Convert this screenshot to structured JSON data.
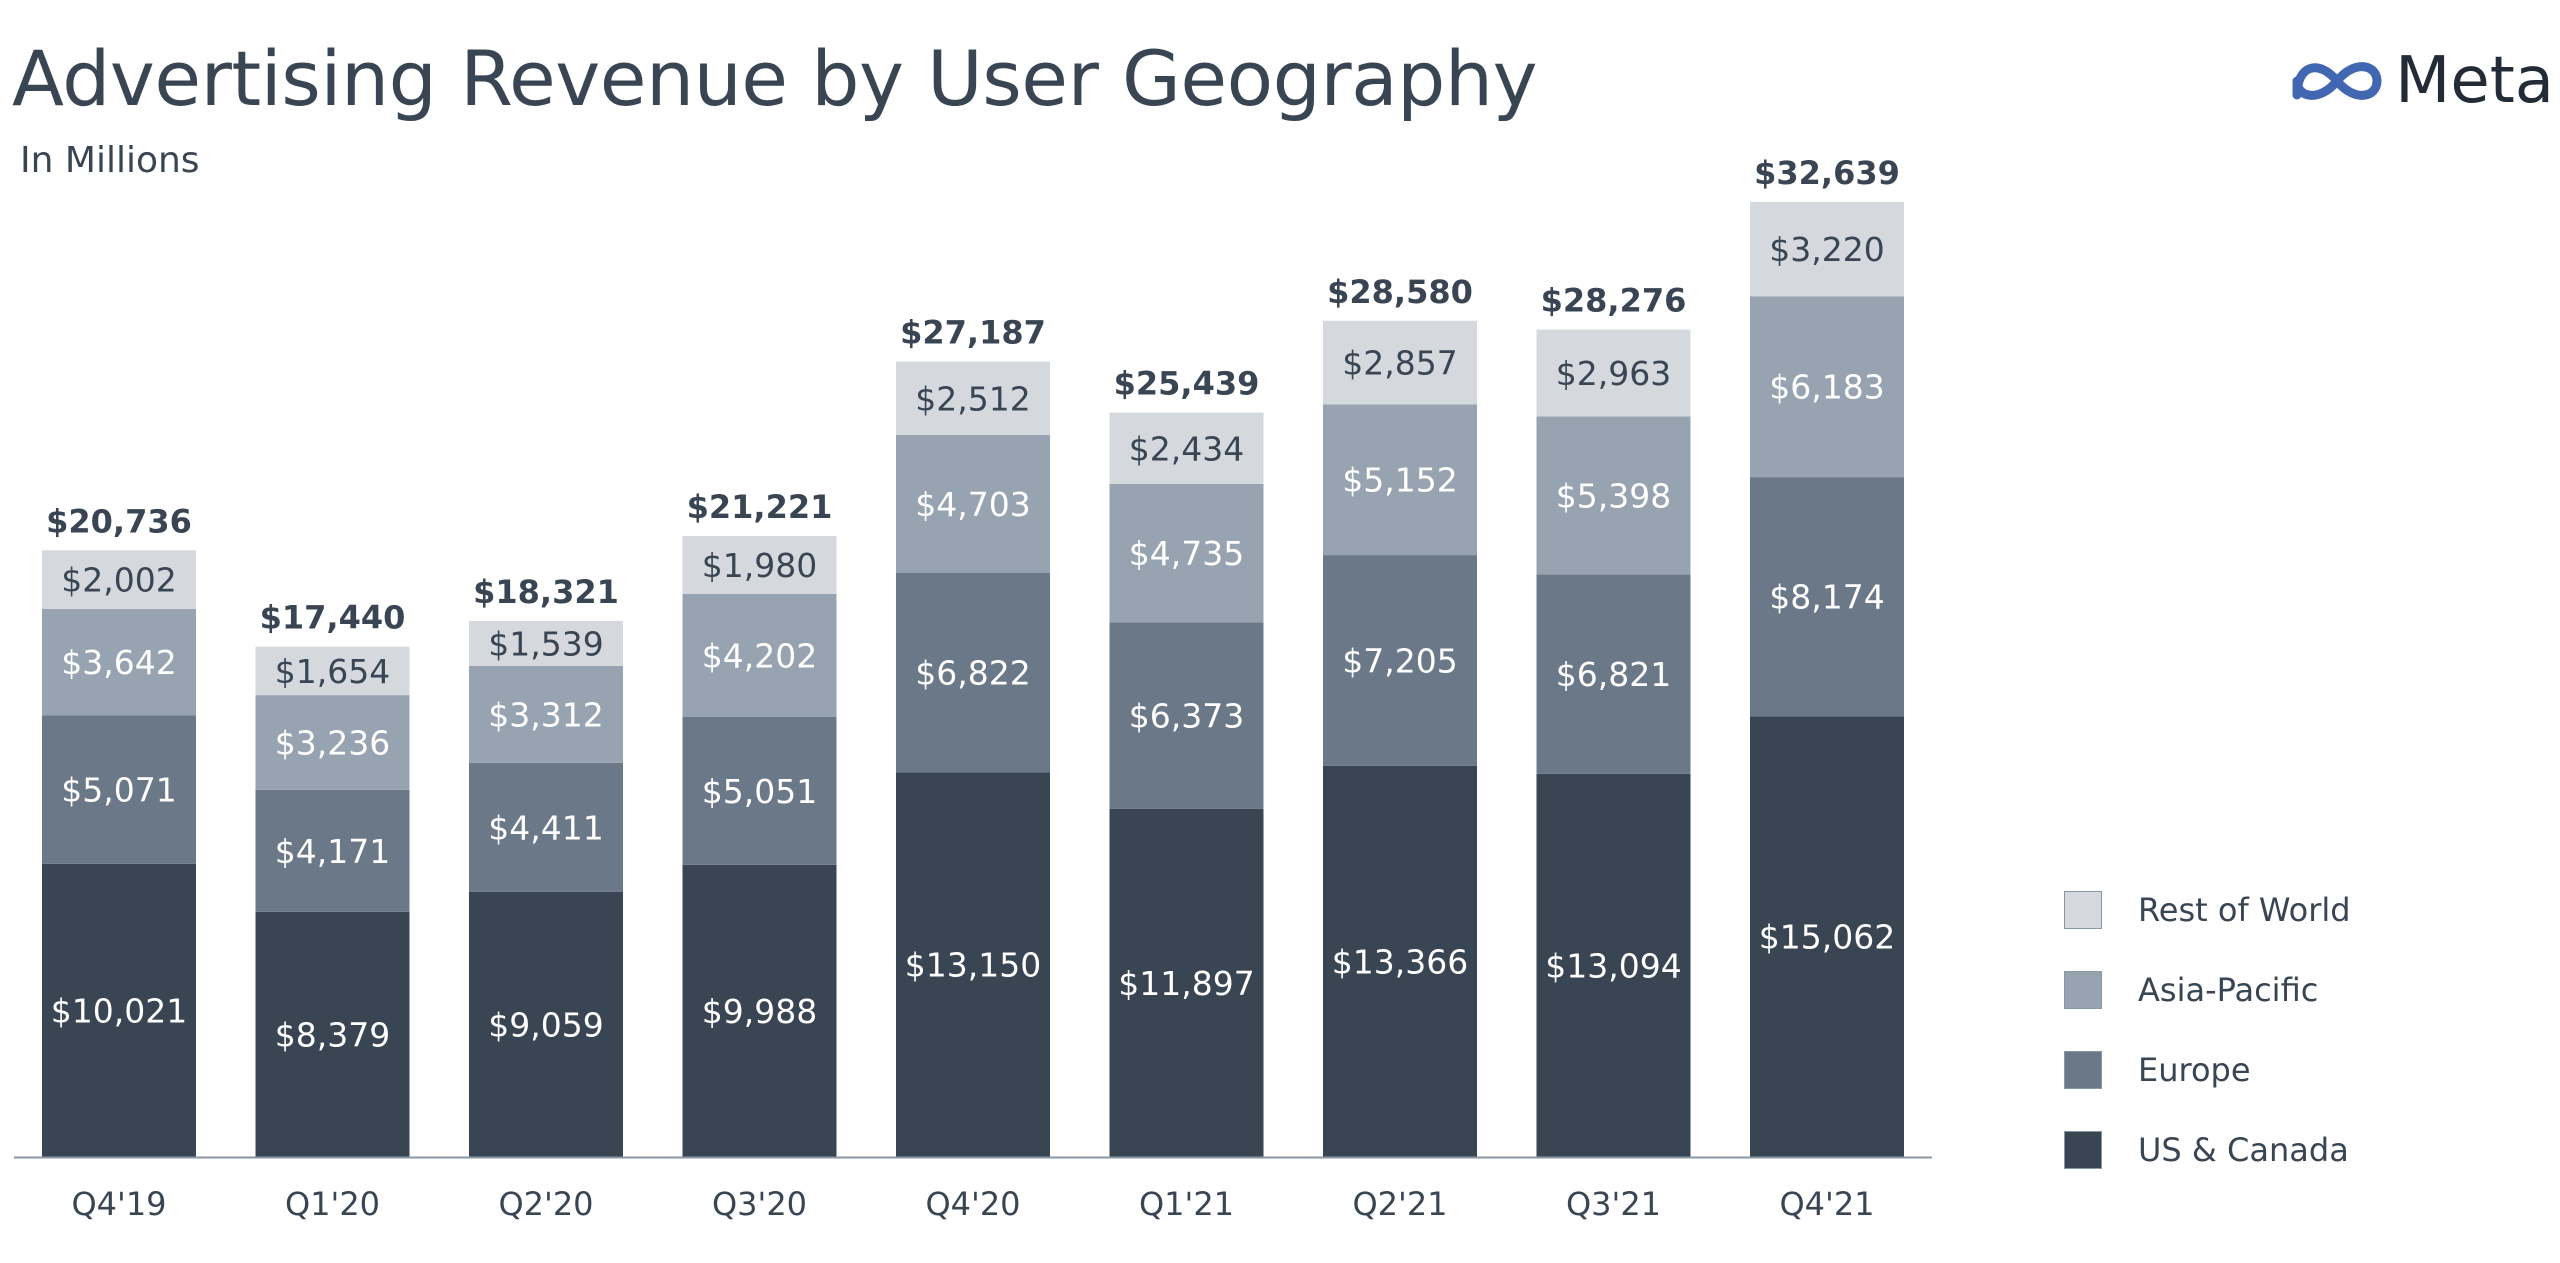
{
  "header": {
    "title": "Advertising Revenue by User Geography",
    "subtitle": "In Millions"
  },
  "logo": {
    "text": "Meta",
    "icon": "meta-infinity-icon",
    "color": "#4267b2"
  },
  "chart_data": {
    "type": "bar",
    "stacked": true,
    "title": "Advertising Revenue by User Geography",
    "subtitle": "In Millions",
    "categories": [
      "Q4'19",
      "Q1'20",
      "Q2'20",
      "Q3'20",
      "Q4'20",
      "Q1'21",
      "Q2'21",
      "Q3'21",
      "Q4'21"
    ],
    "series": [
      {
        "name": "US & Canada",
        "color": "#3a4553",
        "values": [
          10021,
          8379,
          9059,
          9988,
          13150,
          11897,
          13366,
          13094,
          15062
        ]
      },
      {
        "name": "Europe",
        "color": "#6b7888",
        "values": [
          5071,
          4171,
          4411,
          5051,
          6822,
          6373,
          7205,
          6821,
          8174
        ]
      },
      {
        "name": "Asia-Pacific",
        "color": "#97a3b0",
        "values": [
          3642,
          3236,
          3312,
          4202,
          4703,
          4735,
          5152,
          5398,
          6183
        ]
      },
      {
        "name": "Rest of World",
        "color": "#d5d9de",
        "values": [
          2002,
          1654,
          1539,
          1980,
          2512,
          2434,
          2857,
          2963,
          3220
        ]
      }
    ],
    "segment_labels": [
      [
        "$10,021",
        "$8,379",
        "$9,059",
        "$9,988",
        "$13,150",
        "$11,897",
        "$13,366",
        "$13,094",
        "$15,062"
      ],
      [
        "$5,071",
        "$4,171",
        "$4,411",
        "$5,051",
        "$6,822",
        "$6,373",
        "$7,205",
        "$6,821",
        "$8,174"
      ],
      [
        "$3,642",
        "$3,236",
        "$3,312",
        "$4,202",
        "$4,703",
        "$4,735",
        "$5,152",
        "$5,398",
        "$6,183"
      ],
      [
        "$2,002",
        "$1,654",
        "$1,539",
        "$1,980",
        "$2,512",
        "$2,434",
        "$2,857",
        "$2,963",
        "$3,220"
      ]
    ],
    "totals": [
      20736,
      17440,
      18321,
      21221,
      27187,
      25439,
      28580,
      28276,
      32639
    ],
    "total_labels": [
      "$20,736",
      "$17,440",
      "$18,321",
      "$21,221",
      "$27,187",
      "$25,439",
      "$28,580",
      "$28,276",
      "$32,639"
    ],
    "segment_label_colors": [
      "#ffffff",
      "#ffffff",
      "#ffffff",
      "#3a4553"
    ],
    "ylim": [
      0,
      32639
    ],
    "grid": false,
    "legend_position": "bottom-right",
    "legend_order": [
      "Rest of World",
      "Asia-Pacific",
      "Europe",
      "US & Canada"
    ]
  }
}
